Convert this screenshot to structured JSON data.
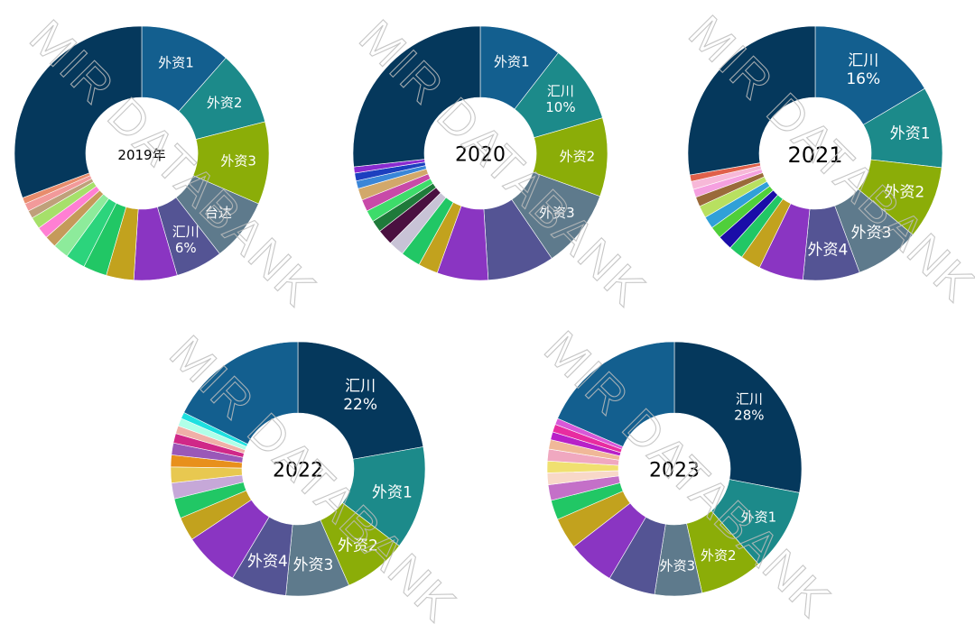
{
  "watermark": "MIR DATABANK",
  "chart_data": [
    {
      "type": "pie",
      "variant": "donut",
      "title": "2019年",
      "slices": [
        {
          "label": "外资1",
          "value": 11.5,
          "color": "#135f8f"
        },
        {
          "label": "外资2",
          "value": 9.5,
          "color": "#1c8a8a"
        },
        {
          "label": "外资3",
          "value": 10.5,
          "color": "#8bad08"
        },
        {
          "label": "台达",
          "value": 8,
          "color": "#5e7a8c"
        },
        {
          "label": "汇川\n6%",
          "value": 6,
          "color": "#545494"
        },
        {
          "label": "",
          "value": 5.5,
          "color": "#8a35c2"
        },
        {
          "label": "",
          "value": 3.5,
          "color": "#c2a21e"
        },
        {
          "label": "",
          "value": 3,
          "color": "#21c765"
        },
        {
          "label": "",
          "value": 2.5,
          "color": "#2cd47c"
        },
        {
          "label": "",
          "value": 2,
          "color": "#8deb9b"
        },
        {
          "label": "",
          "value": 1.5,
          "color": "#c59a5a"
        },
        {
          "label": "",
          "value": 1.5,
          "color": "#ff7fd3"
        },
        {
          "label": "",
          "value": 1.5,
          "color": "#a6e06a"
        },
        {
          "label": "",
          "value": 1,
          "color": "#bfa07a"
        },
        {
          "label": "",
          "value": 1,
          "color": "#f29a9a"
        },
        {
          "label": "",
          "value": 0.8,
          "color": "#e88c6c"
        },
        {
          "label": "",
          "value": 30.7,
          "color": "#05385c"
        }
      ]
    },
    {
      "type": "pie",
      "variant": "donut",
      "title": "2020",
      "slices": [
        {
          "label": "外资1",
          "value": 10.5,
          "color": "#135f8f"
        },
        {
          "label": "汇川\n10%",
          "value": 10,
          "color": "#1c8a8a"
        },
        {
          "label": "外资2",
          "value": 10,
          "color": "#8bad08"
        },
        {
          "label": "外资3",
          "value": 10,
          "color": "#5e7a8c"
        },
        {
          "label": "",
          "value": 8.5,
          "color": "#545494"
        },
        {
          "label": "",
          "value": 6.5,
          "color": "#8a35c2"
        },
        {
          "label": "",
          "value": 2.5,
          "color": "#c2a21e"
        },
        {
          "label": "",
          "value": 2.5,
          "color": "#21c765"
        },
        {
          "label": "",
          "value": 2,
          "color": "#c8c3d6"
        },
        {
          "label": "",
          "value": 2,
          "color": "#4a1040"
        },
        {
          "label": "",
          "value": 1.5,
          "color": "#1f7a3a"
        },
        {
          "label": "",
          "value": 1.5,
          "color": "#3ddc6a"
        },
        {
          "label": "",
          "value": 1.5,
          "color": "#c84aa8"
        },
        {
          "label": "",
          "value": 1.5,
          "color": "#d2a86a"
        },
        {
          "label": "",
          "value": 1,
          "color": "#3a86d8"
        },
        {
          "label": "",
          "value": 1,
          "color": "#1c3fbf"
        },
        {
          "label": "",
          "value": 0.8,
          "color": "#8a2bd0"
        },
        {
          "label": "",
          "value": 26.7,
          "color": "#05385c"
        }
      ]
    },
    {
      "type": "pie",
      "variant": "donut",
      "title": "2021",
      "slices": [
        {
          "label": "汇川\n16%",
          "value": 16,
          "color": "#135f8f"
        },
        {
          "label": "外资1",
          "value": 10,
          "color": "#1c8a8a"
        },
        {
          "label": "外资2",
          "value": 9,
          "color": "#8bad08"
        },
        {
          "label": "外资3",
          "value": 8,
          "color": "#5e7a8c"
        },
        {
          "label": "外资4",
          "value": 7,
          "color": "#545494"
        },
        {
          "label": "",
          "value": 5.5,
          "color": "#8a35c2"
        },
        {
          "label": "",
          "value": 2.5,
          "color": "#c2a21e"
        },
        {
          "label": "",
          "value": 1.8,
          "color": "#21c765"
        },
        {
          "label": "",
          "value": 1.8,
          "color": "#1a0da8"
        },
        {
          "label": "",
          "value": 1.5,
          "color": "#4fcf3a"
        },
        {
          "label": "",
          "value": 1.5,
          "color": "#30a0d8"
        },
        {
          "label": "",
          "value": 1.5,
          "color": "#b8e060"
        },
        {
          "label": "",
          "value": 1.2,
          "color": "#9a6a3a"
        },
        {
          "label": "",
          "value": 1,
          "color": "#f5a0e0"
        },
        {
          "label": "",
          "value": 1,
          "color": "#f7b8d8"
        },
        {
          "label": "",
          "value": 0.8,
          "color": "#e0604a"
        },
        {
          "label": "",
          "value": 26.9,
          "color": "#05385c"
        }
      ]
    },
    {
      "type": "pie",
      "variant": "donut",
      "title": "2022",
      "slices": [
        {
          "label": "汇川\n22%",
          "value": 22,
          "color": "#05385c"
        },
        {
          "label": "外资1",
          "value": 13,
          "color": "#1c8a8a"
        },
        {
          "label": "外资2",
          "value": 8,
          "color": "#8bad08"
        },
        {
          "label": "外资3",
          "value": 8,
          "color": "#5e7a8c"
        },
        {
          "label": "外资4",
          "value": 7,
          "color": "#545494"
        },
        {
          "label": "",
          "value": 7,
          "color": "#8a35c2"
        },
        {
          "label": "",
          "value": 3,
          "color": "#c2a21e"
        },
        {
          "label": "",
          "value": 2.5,
          "color": "#21c765"
        },
        {
          "label": "",
          "value": 2,
          "color": "#c6a8d8"
        },
        {
          "label": "",
          "value": 2,
          "color": "#e8c850"
        },
        {
          "label": "",
          "value": 1.5,
          "color": "#e8901c"
        },
        {
          "label": "",
          "value": 1.5,
          "color": "#9a58b8"
        },
        {
          "label": "",
          "value": 1.2,
          "color": "#d02888"
        },
        {
          "label": "",
          "value": 1,
          "color": "#f0b0a8"
        },
        {
          "label": "",
          "value": 1,
          "color": "#b0ffe8"
        },
        {
          "label": "",
          "value": 0.8,
          "color": "#1ee0e0"
        },
        {
          "label": "",
          "value": 17.5,
          "color": "#135f8f"
        }
      ]
    },
    {
      "type": "pie",
      "variant": "donut",
      "title": "2023",
      "slices": [
        {
          "label": "汇川\n28%",
          "value": 28,
          "color": "#05385c"
        },
        {
          "label": "外资1",
          "value": 10.5,
          "color": "#1c8a8a"
        },
        {
          "label": "外资2",
          "value": 8,
          "color": "#8bad08"
        },
        {
          "label": "外资3",
          "value": 6,
          "color": "#5e7a8c"
        },
        {
          "label": "",
          "value": 6,
          "color": "#545494"
        },
        {
          "label": "",
          "value": 6,
          "color": "#8a35c2"
        },
        {
          "label": "",
          "value": 4,
          "color": "#c2a21e"
        },
        {
          "label": "",
          "value": 2.5,
          "color": "#21c765"
        },
        {
          "label": "",
          "value": 2,
          "color": "#c470c8"
        },
        {
          "label": "",
          "value": 1.5,
          "color": "#f8d8c8"
        },
        {
          "label": "",
          "value": 1.5,
          "color": "#f0e070"
        },
        {
          "label": "",
          "value": 1.5,
          "color": "#f0a8c0"
        },
        {
          "label": "",
          "value": 1.2,
          "color": "#f0b898"
        },
        {
          "label": "",
          "value": 1,
          "color": "#b820c8"
        },
        {
          "label": "",
          "value": 1,
          "color": "#e82ca0"
        },
        {
          "label": "",
          "value": 0.8,
          "color": "#d858d8"
        },
        {
          "label": "",
          "value": 18.5,
          "color": "#135f8f"
        }
      ]
    }
  ]
}
